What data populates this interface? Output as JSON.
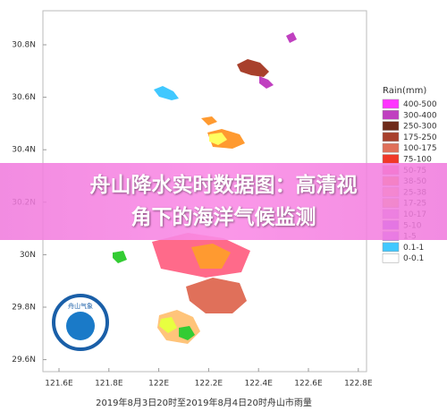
{
  "banner": {
    "title_line1": "舟山降水实时数据图：高清视",
    "title_line2": "角下的海洋气候监测"
  },
  "map": {
    "yticks": [
      "30.8N",
      "30.6N",
      "30.4N",
      "30.2N",
      "30N",
      "29.8N",
      "29.6N"
    ],
    "xticks": [
      "121.6E",
      "121.8E",
      "122E",
      "122.2E",
      "122.4E",
      "122.6E",
      "122.8E"
    ],
    "caption": "2019年8月3日20时至2019年8月4日20时舟山市雨量",
    "logo_text": "舟山气象"
  },
  "legend": {
    "title": "Rain(mm)",
    "items": [
      {
        "label": "400-500",
        "color": "#ff33ff"
      },
      {
        "label": "300-400",
        "color": "#c040c0"
      },
      {
        "label": "250-300",
        "color": "#6e2a1a"
      },
      {
        "label": "175-250",
        "color": "#a8402c"
      },
      {
        "label": "100-175",
        "color": "#e0705a"
      },
      {
        "label": "75-100",
        "color": "#f03828"
      },
      {
        "label": "50-75",
        "color": "#ff6a8a"
      },
      {
        "label": "38-50",
        "color": "#ff9a30"
      },
      {
        "label": "25-38",
        "color": "#ffc47a"
      },
      {
        "label": "17-25",
        "color": "#e8c860"
      },
      {
        "label": "10-17",
        "color": "#c890e8"
      },
      {
        "label": "5-10",
        "color": "#8a4cff"
      },
      {
        "label": "1-5",
        "color": "#b070ff"
      },
      {
        "label": "0.1-1",
        "color": "#40c8ff"
      },
      {
        "label": "0-0.1",
        "color": "#ffffff"
      }
    ]
  }
}
